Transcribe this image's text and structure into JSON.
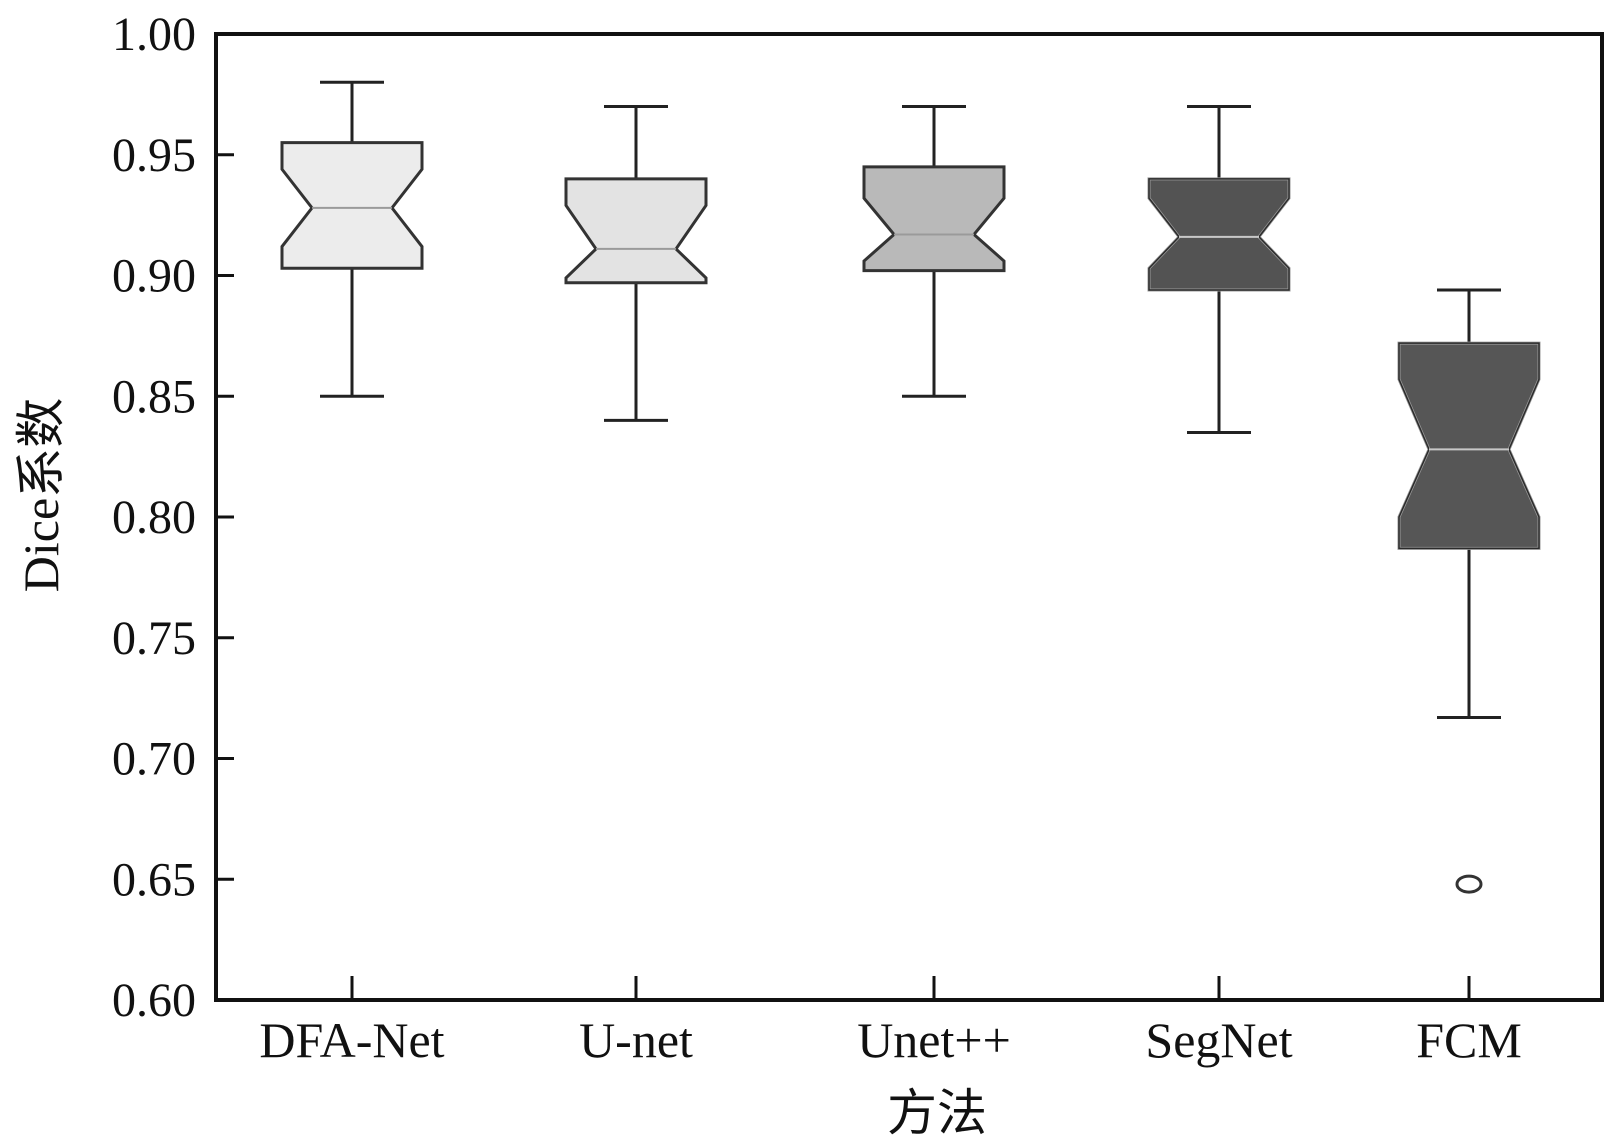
{
  "chart_data": {
    "type": "boxplot",
    "notched": true,
    "title": "",
    "xlabel": "方法",
    "ylabel": "Dice系数",
    "ylim": [
      0.6,
      1.0
    ],
    "yticks": [
      "1.00",
      "0.95",
      "0.90",
      "0.85",
      "0.80",
      "0.75",
      "0.70",
      "0.65",
      "0.60"
    ],
    "grid": false,
    "categories": [
      "DFA-Net",
      "U-net",
      "Unet++",
      "SegNet",
      "FCM"
    ],
    "boxes": [
      {
        "name": "DFA-Net",
        "whisker_low": 0.85,
        "q1": 0.903,
        "median": 0.928,
        "q3": 0.955,
        "whisker_high": 0.98,
        "notch_low": 0.912,
        "notch_high": 0.944,
        "fill": "#ececec",
        "outliers": []
      },
      {
        "name": "U-net",
        "whisker_low": 0.84,
        "q1": 0.897,
        "median": 0.911,
        "q3": 0.94,
        "whisker_high": 0.97,
        "notch_low": 0.899,
        "notch_high": 0.929,
        "fill": "#e3e3e3",
        "outliers": []
      },
      {
        "name": "Unet++",
        "whisker_low": 0.85,
        "q1": 0.902,
        "median": 0.917,
        "q3": 0.945,
        "whisker_high": 0.97,
        "notch_low": 0.906,
        "notch_high": 0.932,
        "fill": "#b9b9b9",
        "outliers": []
      },
      {
        "name": "SegNet",
        "whisker_low": 0.835,
        "q1": 0.894,
        "median": 0.916,
        "q3": 0.94,
        "whisker_high": 0.97,
        "notch_low": 0.903,
        "notch_high": 0.932,
        "fill": "#535353",
        "outliers": []
      },
      {
        "name": "FCM",
        "whisker_low": 0.717,
        "q1": 0.787,
        "median": 0.828,
        "q3": 0.872,
        "whisker_high": 0.894,
        "notch_low": 0.8,
        "notch_high": 0.857,
        "fill": "#565656",
        "outliers": [
          0.648
        ]
      }
    ]
  }
}
